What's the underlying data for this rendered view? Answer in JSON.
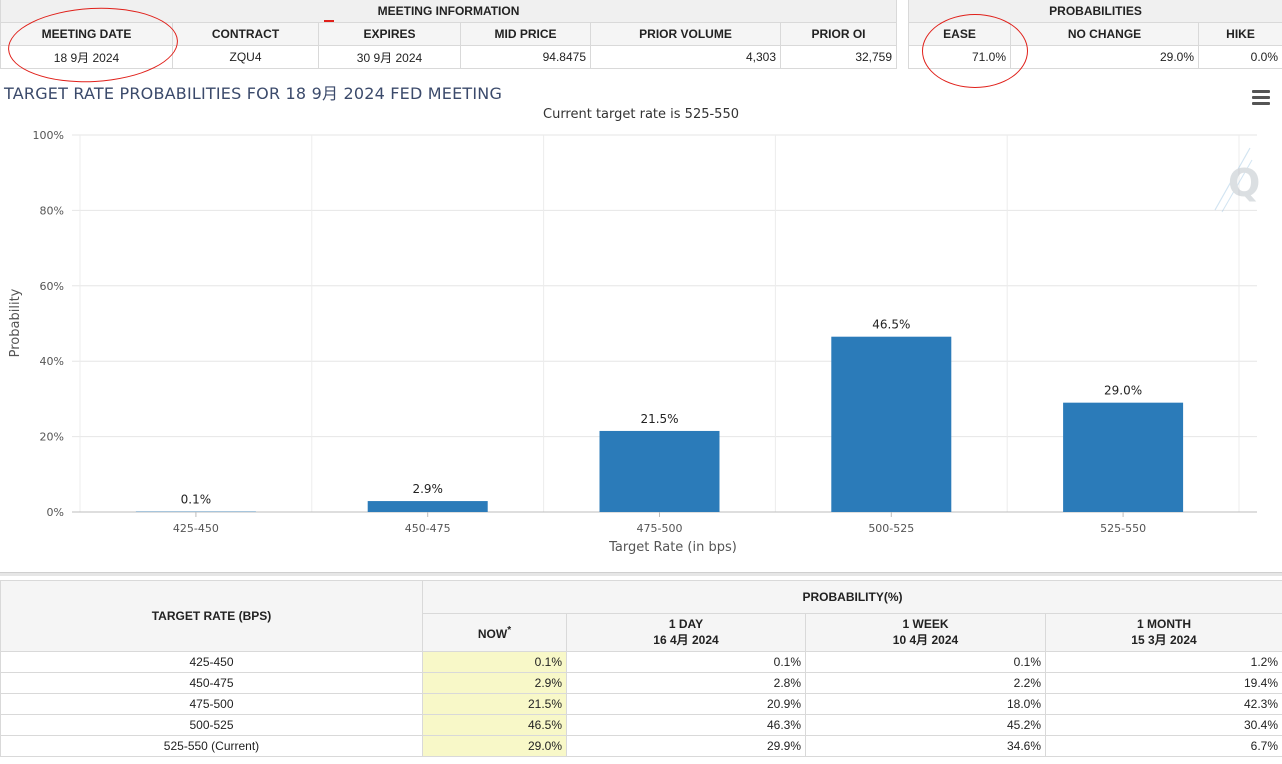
{
  "meeting_info": {
    "group_label": "MEETING INFORMATION",
    "headers": [
      "MEETING DATE",
      "CONTRACT",
      "EXPIRES",
      "MID PRICE",
      "PRIOR VOLUME",
      "PRIOR OI"
    ],
    "values": [
      "18 9月 2024",
      "ZQU4",
      "30 9月 2024",
      "94.8475",
      "4,303",
      "32,759"
    ]
  },
  "probabilities": {
    "group_label": "PROBABILITIES",
    "headers": [
      "EASE",
      "NO CHANGE",
      "HIKE"
    ],
    "values": [
      "71.0%",
      "29.0%",
      "0.0%"
    ]
  },
  "annotation_color": "#e0201a",
  "chart_data": {
    "type": "bar",
    "title": "TARGET RATE PROBABILITIES FOR 18 9月 2024 FED MEETING",
    "subtitle": "Current target rate is 525-550",
    "xlabel": "Target Rate (in bps)",
    "ylabel": "Probability",
    "categories": [
      "425-450",
      "450-475",
      "475-500",
      "500-525",
      "525-550"
    ],
    "values": [
      0.1,
      2.9,
      21.5,
      46.5,
      29.0
    ],
    "data_labels": [
      "0.1%",
      "2.9%",
      "21.5%",
      "46.5%",
      "29.0%"
    ],
    "ylim": [
      0,
      100
    ],
    "yticks": [
      0,
      20,
      40,
      60,
      80,
      100
    ],
    "ytick_labels": [
      "0%",
      "20%",
      "40%",
      "60%",
      "80%",
      "100%"
    ],
    "bar_color": "#2b7bb9",
    "grid": true,
    "legend": "none"
  },
  "bottom_table": {
    "rate_header": "TARGET RATE (BPS)",
    "prob_group": "PROBABILITY(%)",
    "columns": [
      {
        "label": "NOW",
        "sup": "*",
        "date": ""
      },
      {
        "label": "1 DAY",
        "sup": "",
        "date": "16 4月 2024"
      },
      {
        "label": "1 WEEK",
        "sup": "",
        "date": "10 4月 2024"
      },
      {
        "label": "1 MONTH",
        "sup": "",
        "date": "15 3月 2024"
      }
    ],
    "rows": [
      {
        "rate": "425-450",
        "values": [
          "0.1%",
          "0.1%",
          "0.1%",
          "1.2%"
        ]
      },
      {
        "rate": "450-475",
        "values": [
          "2.9%",
          "2.8%",
          "2.2%",
          "19.4%"
        ]
      },
      {
        "rate": "475-500",
        "values": [
          "21.5%",
          "20.9%",
          "18.0%",
          "42.3%"
        ]
      },
      {
        "rate": "500-525",
        "values": [
          "46.5%",
          "46.3%",
          "45.2%",
          "30.4%"
        ]
      },
      {
        "rate": "525-550 (Current)",
        "values": [
          "29.0%",
          "29.9%",
          "34.6%",
          "6.7%"
        ]
      }
    ]
  }
}
